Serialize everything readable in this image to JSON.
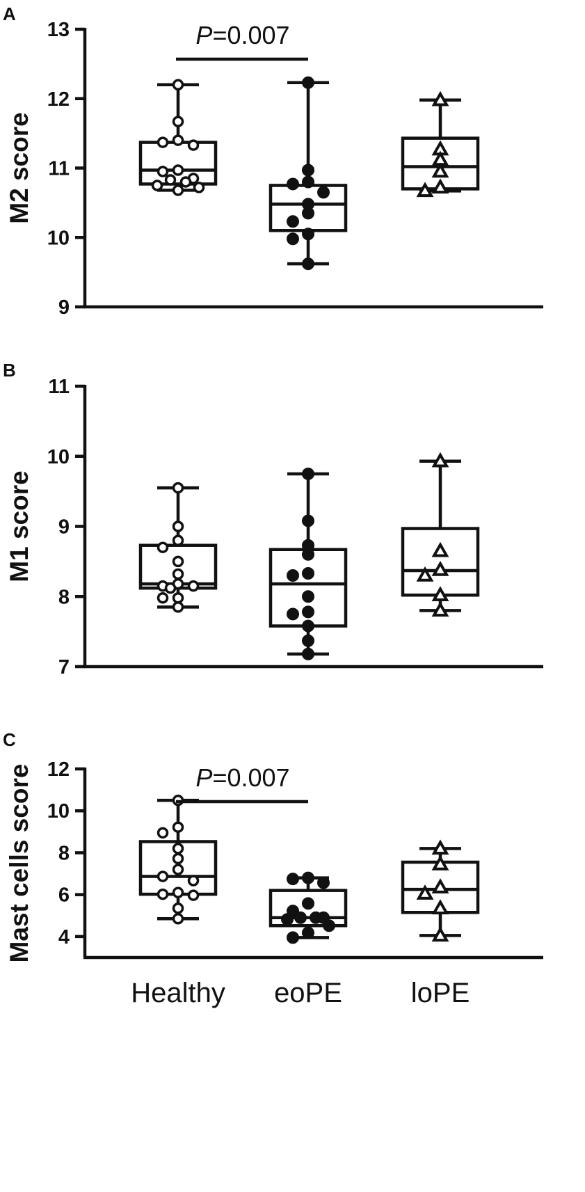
{
  "chart_data": [
    {
      "type": "box",
      "panel_label": "A",
      "ylabel": "M2 score",
      "ylim": [
        9,
        13
      ],
      "yticks": [
        9,
        10,
        11,
        12,
        13
      ],
      "categories": [
        "Healthy",
        "eoPE",
        "loPE"
      ],
      "groups": [
        {
          "name": "Healthy",
          "marker": "open-circle",
          "box": {
            "min": 10.68,
            "q1": 10.77,
            "median": 10.97,
            "q3": 11.37,
            "max": 12.2
          },
          "points": [
            12.2,
            11.67,
            11.4,
            11.37,
            11.33,
            10.97,
            10.95,
            10.85,
            10.83,
            10.8,
            10.75,
            10.72,
            10.68
          ]
        },
        {
          "name": "eoPE",
          "marker": "filled-circle",
          "box": {
            "min": 9.62,
            "q1": 10.1,
            "median": 10.48,
            "q3": 10.75,
            "max": 12.23
          },
          "points": [
            12.23,
            10.97,
            10.8,
            10.77,
            10.65,
            10.48,
            10.35,
            10.23,
            10.05,
            9.98,
            9.62
          ]
        },
        {
          "name": "loPE",
          "marker": "open-triangle",
          "box": {
            "min": 10.67,
            "q1": 10.7,
            "median": 11.02,
            "q3": 11.43,
            "max": 11.98
          },
          "points": [
            11.98,
            11.27,
            11.12,
            10.95,
            10.72,
            10.67
          ]
        }
      ],
      "significance": {
        "from": "Healthy",
        "to": "eoPE",
        "p_prefix": "P",
        "p_value": "=0.007"
      }
    },
    {
      "type": "box",
      "panel_label": "B",
      "ylabel": "M1 score",
      "ylim": [
        7,
        11
      ],
      "yticks": [
        7,
        8,
        9,
        10,
        11
      ],
      "categories": [
        "Healthy",
        "eoPE",
        "loPE"
      ],
      "groups": [
        {
          "name": "Healthy",
          "marker": "open-circle",
          "box": {
            "min": 7.85,
            "q1": 8.12,
            "median": 8.18,
            "q3": 8.73,
            "max": 9.55
          },
          "points": [
            9.55,
            9.0,
            8.8,
            8.7,
            8.5,
            8.32,
            8.18,
            8.15,
            8.15,
            8.12,
            7.98,
            7.98,
            7.85
          ]
        },
        {
          "name": "eoPE",
          "marker": "filled-circle",
          "box": {
            "min": 7.18,
            "q1": 7.58,
            "median": 8.18,
            "q3": 8.67,
            "max": 9.75
          },
          "points": [
            9.75,
            9.08,
            8.73,
            8.6,
            8.33,
            8.3,
            8.0,
            7.78,
            7.75,
            7.58,
            7.37,
            7.18
          ]
        },
        {
          "name": "loPE",
          "marker": "open-triangle",
          "box": {
            "min": 7.8,
            "q1": 8.02,
            "median": 8.37,
            "q3": 8.97,
            "max": 9.93
          },
          "points": [
            9.93,
            8.65,
            8.38,
            8.3,
            8.02,
            7.8
          ]
        }
      ]
    },
    {
      "type": "box",
      "panel_label": "C",
      "ylabel": "Mast cells score",
      "ylim": [
        3,
        12
      ],
      "yticks": [
        4,
        6,
        8,
        10,
        12
      ],
      "categories": [
        "Healthy",
        "eoPE",
        "loPE"
      ],
      "groups": [
        {
          "name": "Healthy",
          "marker": "open-circle",
          "box": {
            "min": 4.85,
            "q1": 6.02,
            "median": 6.87,
            "q3": 8.53,
            "max": 10.5
          },
          "points": [
            10.5,
            9.22,
            8.95,
            8.2,
            7.72,
            7.2,
            6.87,
            6.67,
            6.1,
            6.02,
            5.97,
            5.35,
            4.85
          ]
        },
        {
          "name": "eoPE",
          "marker": "filled-circle",
          "box": {
            "min": 3.95,
            "q1": 4.52,
            "median": 4.9,
            "q3": 6.2,
            "max": 6.8
          },
          "points": [
            6.8,
            6.75,
            6.57,
            5.58,
            5.22,
            4.9,
            4.9,
            4.9,
            4.82,
            4.52,
            4.18,
            3.95
          ]
        },
        {
          "name": "loPE",
          "marker": "open-triangle",
          "box": {
            "min": 4.05,
            "q1": 5.15,
            "median": 6.25,
            "q3": 7.55,
            "max": 8.2
          },
          "points": [
            8.2,
            7.45,
            6.35,
            6.05,
            5.35,
            4.05
          ]
        }
      ],
      "significance": {
        "from": "Healthy",
        "to": "eoPE",
        "p_prefix": "P",
        "p_value": "=0.007"
      }
    }
  ]
}
